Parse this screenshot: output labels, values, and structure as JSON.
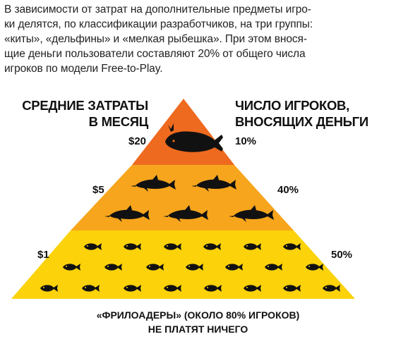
{
  "intro": {
    "lines": [
      "В зависимости от затрат на дополнительные предметы игро-",
      "ки делятся, по классификации разработчиков, на три группы:",
      "«киты», «дельфины» и «мелкая рыбешка». При этом внося-",
      "щие деньги пользователи составляют 20% от общего числа",
      "игроков по модели Free-to-Play."
    ]
  },
  "headers": {
    "left": [
      "СРЕДНИЕ ЗАТРАТЫ",
      "В МЕСЯЦ"
    ],
    "right": [
      "ЧИСЛО ИГРОКОВ,",
      "ВНОСЯЩИХ ДЕНЬГИ"
    ]
  },
  "tiers": [
    {
      "spend": "$20",
      "share": "10%",
      "color": "#ee6a1f",
      "icon": "whale-icon"
    },
    {
      "spend": "$5",
      "share": "40%",
      "color": "#f7a51d",
      "icon": "dolphin-icon"
    },
    {
      "spend": "$1",
      "share": "50%",
      "color": "#fcd20a",
      "icon": "fish-icon"
    }
  ],
  "footer": {
    "lines": [
      "«ФРИЛОАДЕРЫ» (ОКОЛО 80% ИГРОКОВ)",
      "НЕ ПЛАТЯТ НИЧЕГО"
    ]
  }
}
